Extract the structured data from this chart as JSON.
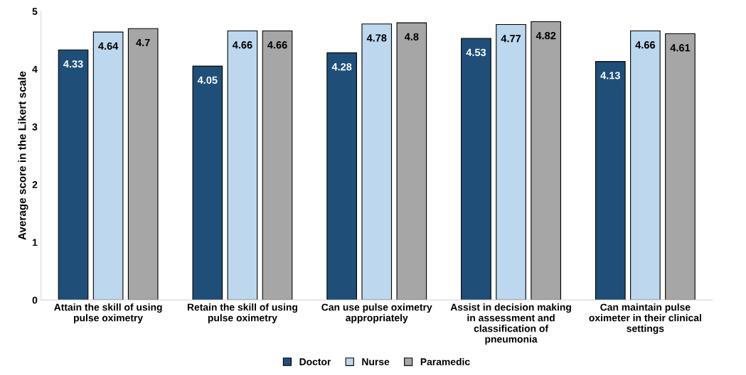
{
  "chart_data": {
    "type": "bar",
    "ylabel": "Average score in the Likert scale",
    "categories": [
      "Attain the skill of using\npulse oximetry",
      "Retain the skill of using\npulse oximetry",
      "Can use pulse oximetry\nappropriately",
      "Assist in decision making\nin assessment and\nclassification of\npneumonia",
      "Can maintain pulse\noximeter in their clinical\nsettings"
    ],
    "series": [
      {
        "name": "Doctor",
        "color": "#1f4e79",
        "values": [
          4.33,
          4.05,
          4.28,
          4.53,
          4.13
        ]
      },
      {
        "name": "Nurse",
        "color": "#bdd7ee",
        "values": [
          4.64,
          4.66,
          4.78,
          4.77,
          4.66
        ]
      },
      {
        "name": "Paramedic",
        "color": "#a6a6a6",
        "values": [
          4.7,
          4.66,
          4.8,
          4.82,
          4.61
        ]
      }
    ],
    "ylim": [
      0,
      5
    ],
    "yticks": [
      0,
      1,
      2,
      3,
      4,
      5
    ],
    "grid": false,
    "legend": "bottom",
    "data_labels": true
  }
}
